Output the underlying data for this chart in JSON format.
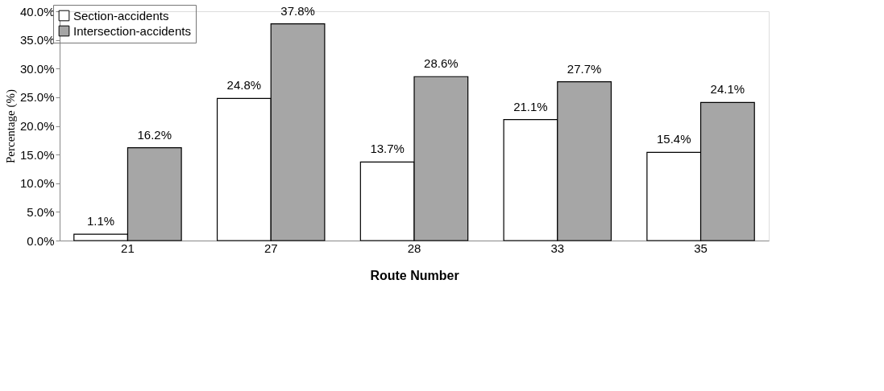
{
  "chart_data": {
    "type": "bar",
    "xlabel": "Route Number",
    "ylabel": "Percentage (%)",
    "categories": [
      "21",
      "27",
      "28",
      "33",
      "35"
    ],
    "series": [
      {
        "name": "Section-accidents",
        "color": "#ffffff",
        "values": [
          1.1,
          24.8,
          13.7,
          21.1,
          15.4
        ],
        "value_labels": [
          "1.1%",
          "24.8%",
          "13.7%",
          "21.1%",
          "15.4%"
        ]
      },
      {
        "name": "Intersection-accidents",
        "color": "#a6a6a6",
        "values": [
          16.2,
          37.8,
          28.6,
          27.7,
          24.1
        ],
        "value_labels": [
          "16.2%",
          "37.8%",
          "28.6%",
          "27.7%",
          "24.1%"
        ]
      }
    ],
    "ylim": [
      0,
      40
    ],
    "yticks": [
      {
        "value": 0,
        "label": "0.0%"
      },
      {
        "value": 5,
        "label": "5.0%"
      },
      {
        "value": 10,
        "label": "10.0%"
      },
      {
        "value": 15,
        "label": "15.0%"
      },
      {
        "value": 20,
        "label": "20.0%"
      },
      {
        "value": 25,
        "label": "25.0%"
      },
      {
        "value": 30,
        "label": "30.0%"
      },
      {
        "value": 35,
        "label": "35.0%"
      },
      {
        "value": 40,
        "label": "40.0%"
      }
    ],
    "grid": false,
    "legend": "top left"
  }
}
